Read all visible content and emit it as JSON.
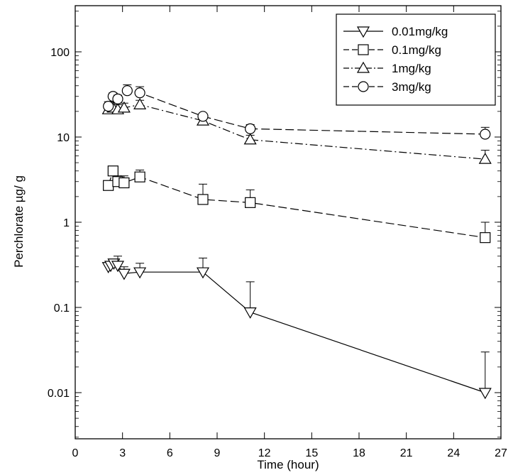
{
  "chart_data": {
    "type": "scatter",
    "title": "",
    "xlabel": "Time (hour)",
    "ylabel": "Perchlorate µg/ g",
    "xlim": [
      0,
      27
    ],
    "ylim": [
      0.005,
      300
    ],
    "yscale": "log",
    "xticks": [
      0,
      3,
      6,
      9,
      12,
      15,
      18,
      21,
      24,
      27
    ],
    "yticks": [
      {
        "value": 0.01,
        "label": "0.01"
      },
      {
        "value": 0.1,
        "label": "0.1"
      },
      {
        "value": 1,
        "label": "1"
      },
      {
        "value": 10,
        "label": "10"
      },
      {
        "value": 100,
        "label": "100"
      }
    ],
    "grid": false,
    "legend_position": "top-right",
    "series": [
      {
        "name": "0.01mg/kg",
        "marker": "triangle-down",
        "line_style": "solid",
        "x": [
          2.1,
          2.25,
          2.45,
          2.7,
          3.1,
          4.1,
          8.1,
          11.1,
          26.0
        ],
        "y": [
          0.3,
          0.31,
          0.33,
          0.31,
          0.25,
          0.26,
          0.26,
          0.088,
          0.01
        ],
        "error_upper": [
          0.33,
          0.34,
          0.36,
          0.4,
          0.3,
          0.33,
          0.38,
          0.2,
          0.03
        ]
      },
      {
        "name": "0.1mg/kg",
        "marker": "square",
        "line_style": "dashed",
        "x": [
          2.1,
          2.4,
          2.7,
          3.1,
          4.1,
          8.1,
          11.1,
          26.0
        ],
        "y": [
          2.7,
          4.0,
          3.0,
          2.9,
          3.4,
          1.85,
          1.7,
          0.66
        ],
        "error_upper": [
          3.0,
          4.3,
          3.5,
          3.5,
          4.1,
          2.8,
          2.4,
          1.0
        ]
      },
      {
        "name": "1mg/kg",
        "marker": "triangle-up",
        "line_style": "dash-dot",
        "x": [
          2.1,
          2.4,
          2.7,
          3.1,
          4.1,
          8.1,
          11.1,
          26.0
        ],
        "y": [
          21,
          22,
          21,
          22,
          24,
          15.5,
          9.3,
          5.5
        ],
        "error_upper": [
          24,
          25,
          24,
          25,
          27,
          17.5,
          10.5,
          7.0
        ]
      },
      {
        "name": "3mg/kg",
        "marker": "circle",
        "line_style": "dashed",
        "x": [
          2.1,
          2.4,
          2.7,
          3.3,
          4.1,
          8.1,
          11.1,
          26.0
        ],
        "y": [
          23,
          30,
          28,
          35,
          33,
          17.5,
          12.5,
          10.8
        ],
        "error_upper": [
          26,
          33,
          31,
          41,
          39,
          19,
          14,
          13
        ]
      }
    ]
  }
}
